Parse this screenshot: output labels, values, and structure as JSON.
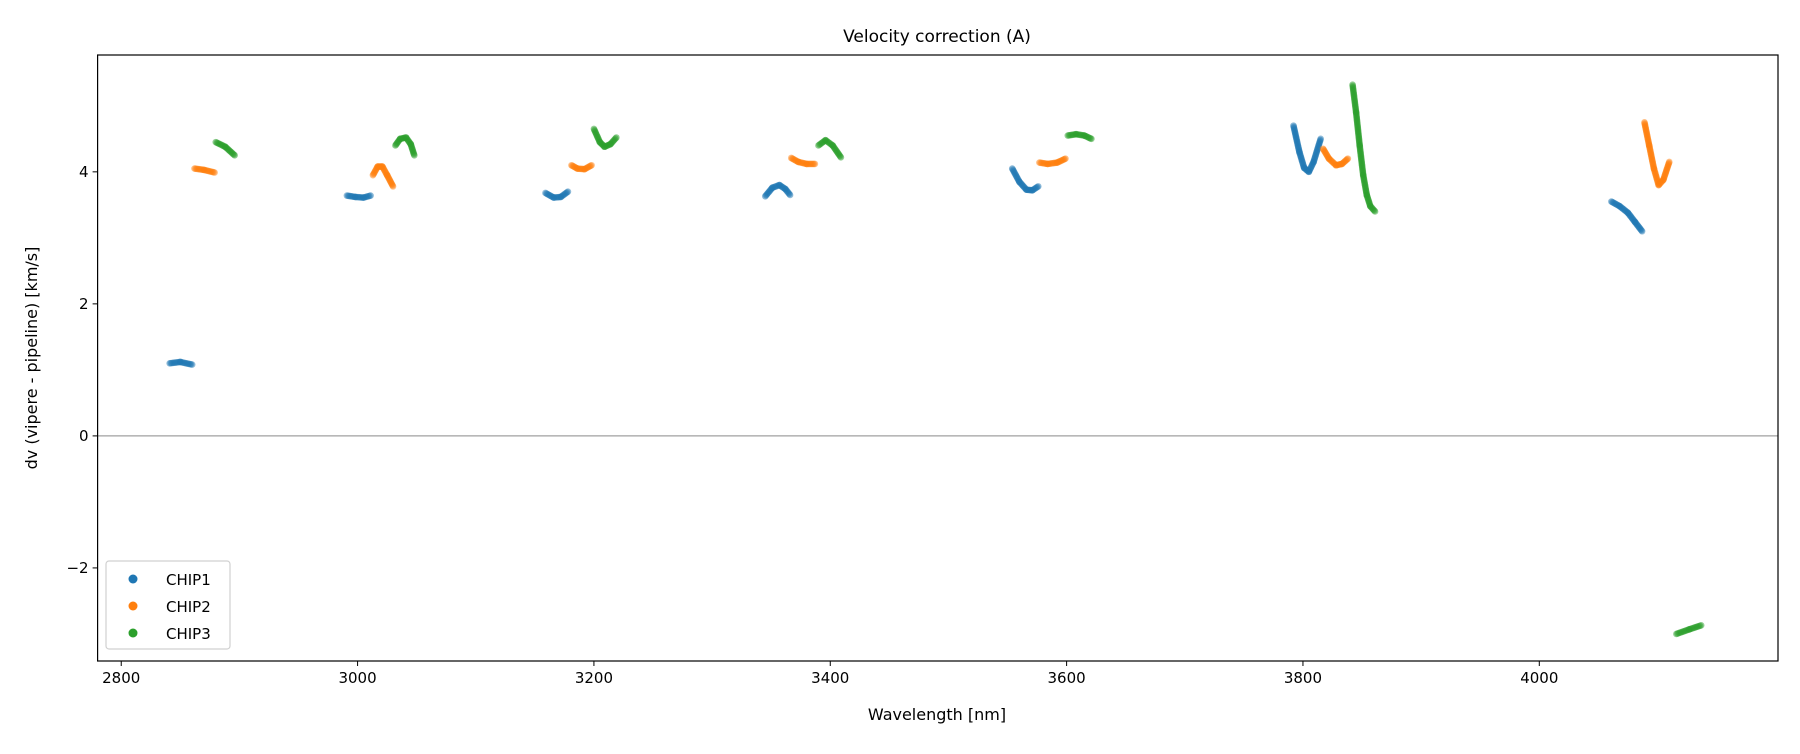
{
  "chart_data": {
    "type": "scatter",
    "title": "Velocity correction (A)",
    "xlabel": "Wavelength [nm]",
    "ylabel": "dv (vipere - pipeline) [km/s]",
    "xlim": [
      2780,
      4202
    ],
    "ylim": [
      -3.41,
      5.77
    ],
    "xticks": [
      2800,
      3000,
      3200,
      3400,
      3600,
      3800,
      4000
    ],
    "yticks": [
      -2,
      0,
      2,
      4
    ],
    "ytick_labels": [
      "−2",
      "0",
      "2",
      "4"
    ],
    "hline": 0,
    "grid": false,
    "legend": {
      "placement": "lower-left",
      "entries": [
        "CHIP1",
        "CHIP2",
        "CHIP3"
      ]
    },
    "series": [
      {
        "name": "CHIP1",
        "color": "#1f77b4",
        "segments": [
          [
            [
              2841,
              1.1
            ],
            [
              2850,
              1.12
            ],
            [
              2860,
              1.08
            ]
          ],
          [
            [
              2991,
              3.64
            ],
            [
              2998,
              3.62
            ],
            [
              3005,
              3.61
            ],
            [
              3011,
              3.64
            ]
          ],
          [
            [
              3159,
              3.68
            ],
            [
              3166,
              3.61
            ],
            [
              3172,
              3.62
            ],
            [
              3178,
              3.7
            ]
          ],
          [
            [
              3345,
              3.63
            ],
            [
              3351,
              3.76
            ],
            [
              3357,
              3.8
            ],
            [
              3362,
              3.74
            ],
            [
              3366,
              3.65
            ]
          ],
          [
            [
              3554,
              4.05
            ],
            [
              3560,
              3.85
            ],
            [
              3566,
              3.73
            ],
            [
              3571,
              3.72
            ],
            [
              3576,
              3.78
            ]
          ],
          [
            [
              3792,
              4.7
            ],
            [
              3797,
              4.3
            ],
            [
              3801,
              4.06
            ],
            [
              3805,
              4.0
            ],
            [
              3809,
              4.15
            ],
            [
              3815,
              4.5
            ]
          ],
          [
            [
              4061,
              3.55
            ],
            [
              4068,
              3.48
            ],
            [
              4075,
              3.38
            ],
            [
              4081,
              3.24
            ],
            [
              4087,
              3.1
            ]
          ]
        ]
      },
      {
        "name": "CHIP2",
        "color": "#ff7f0e",
        "segments": [
          [
            [
              2862,
              4.05
            ],
            [
              2870,
              4.03
            ],
            [
              2879,
              3.99
            ]
          ],
          [
            [
              3013,
              3.95
            ],
            [
              3017,
              4.08
            ],
            [
              3021,
              4.08
            ],
            [
              3025,
              3.95
            ],
            [
              3030,
              3.78
            ]
          ],
          [
            [
              3181,
              4.1
            ],
            [
              3186,
              4.05
            ],
            [
              3192,
              4.04
            ],
            [
              3198,
              4.1
            ]
          ],
          [
            [
              3367,
              4.21
            ],
            [
              3373,
              4.15
            ],
            [
              3380,
              4.12
            ],
            [
              3387,
              4.12
            ]
          ],
          [
            [
              3577,
              4.14
            ],
            [
              3584,
              4.12
            ],
            [
              3592,
              4.14
            ],
            [
              3599,
              4.2
            ]
          ],
          [
            [
              3817,
              4.35
            ],
            [
              3822,
              4.2
            ],
            [
              3828,
              4.1
            ],
            [
              3833,
              4.12
            ],
            [
              3838,
              4.2
            ]
          ],
          [
            [
              4089,
              4.75
            ],
            [
              4093,
              4.4
            ],
            [
              4097,
              4.05
            ],
            [
              4101,
              3.8
            ],
            [
              4105,
              3.88
            ],
            [
              4110,
              4.15
            ]
          ]
        ]
      },
      {
        "name": "CHIP3",
        "color": "#2ca02c",
        "segments": [
          [
            [
              2880,
              4.45
            ],
            [
              2888,
              4.38
            ],
            [
              2896,
              4.25
            ]
          ],
          [
            [
              3032,
              4.4
            ],
            [
              3036,
              4.5
            ],
            [
              3041,
              4.52
            ],
            [
              3045,
              4.42
            ],
            [
              3048,
              4.25
            ]
          ],
          [
            [
              3200,
              4.65
            ],
            [
              3205,
              4.45
            ],
            [
              3209,
              4.38
            ],
            [
              3214,
              4.42
            ],
            [
              3219,
              4.52
            ]
          ],
          [
            [
              3390,
              4.4
            ],
            [
              3396,
              4.48
            ],
            [
              3402,
              4.4
            ],
            [
              3409,
              4.22
            ]
          ],
          [
            [
              3601,
              4.55
            ],
            [
              3608,
              4.57
            ],
            [
              3615,
              4.55
            ],
            [
              3621,
              4.5
            ]
          ],
          [
            [
              3842,
              5.32
            ],
            [
              3845,
              4.9
            ],
            [
              3848,
              4.4
            ],
            [
              3851,
              3.95
            ],
            [
              3854,
              3.65
            ],
            [
              3857,
              3.48
            ],
            [
              3861,
              3.4
            ]
          ],
          [
            [
              4116,
              -3.0
            ],
            [
              4127,
              -2.93
            ],
            [
              4137,
              -2.87
            ]
          ]
        ]
      }
    ]
  }
}
